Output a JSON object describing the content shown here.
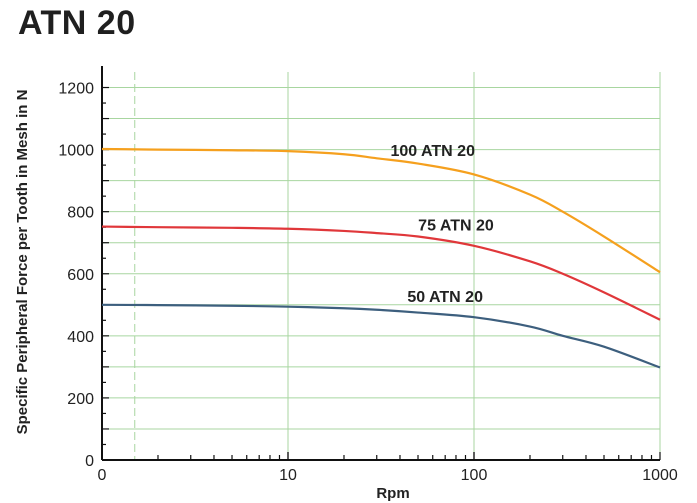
{
  "chart_data": {
    "type": "line",
    "title": "ATN 20",
    "xlabel": "Rpm",
    "ylabel": "Specific Peripheral Force per Tooth in Mesh in N",
    "x_scale": "log",
    "xlim": [
      1,
      1000
    ],
    "ylim": [
      0,
      1250
    ],
    "x_ticks": [
      "0",
      "10",
      "100",
      "1000"
    ],
    "y_ticks": [
      0,
      200,
      400,
      600,
      800,
      1000,
      1200
    ],
    "grid": true,
    "series": [
      {
        "name": "100 ATN 20",
        "color": "#f5a01e",
        "x": [
          1,
          2,
          5,
          10,
          20,
          30,
          50,
          100,
          200,
          300,
          500,
          1000
        ],
        "y": [
          1002,
          1000,
          998,
          995,
          985,
          972,
          955,
          920,
          855,
          800,
          720,
          605
        ]
      },
      {
        "name": "75 ATN 20",
        "color": "#e0373a",
        "x": [
          1,
          2,
          5,
          10,
          20,
          30,
          50,
          100,
          200,
          300,
          500,
          1000
        ],
        "y": [
          752,
          750,
          748,
          745,
          738,
          731,
          720,
          690,
          640,
          600,
          540,
          452
        ]
      },
      {
        "name": "50 ATN 20",
        "color": "#3d5f7e",
        "x": [
          1,
          2,
          5,
          10,
          20,
          30,
          50,
          100,
          200,
          300,
          500,
          1000
        ],
        "y": [
          500,
          499,
          497,
          494,
          489,
          484,
          475,
          460,
          430,
          400,
          365,
          298
        ]
      }
    ]
  }
}
